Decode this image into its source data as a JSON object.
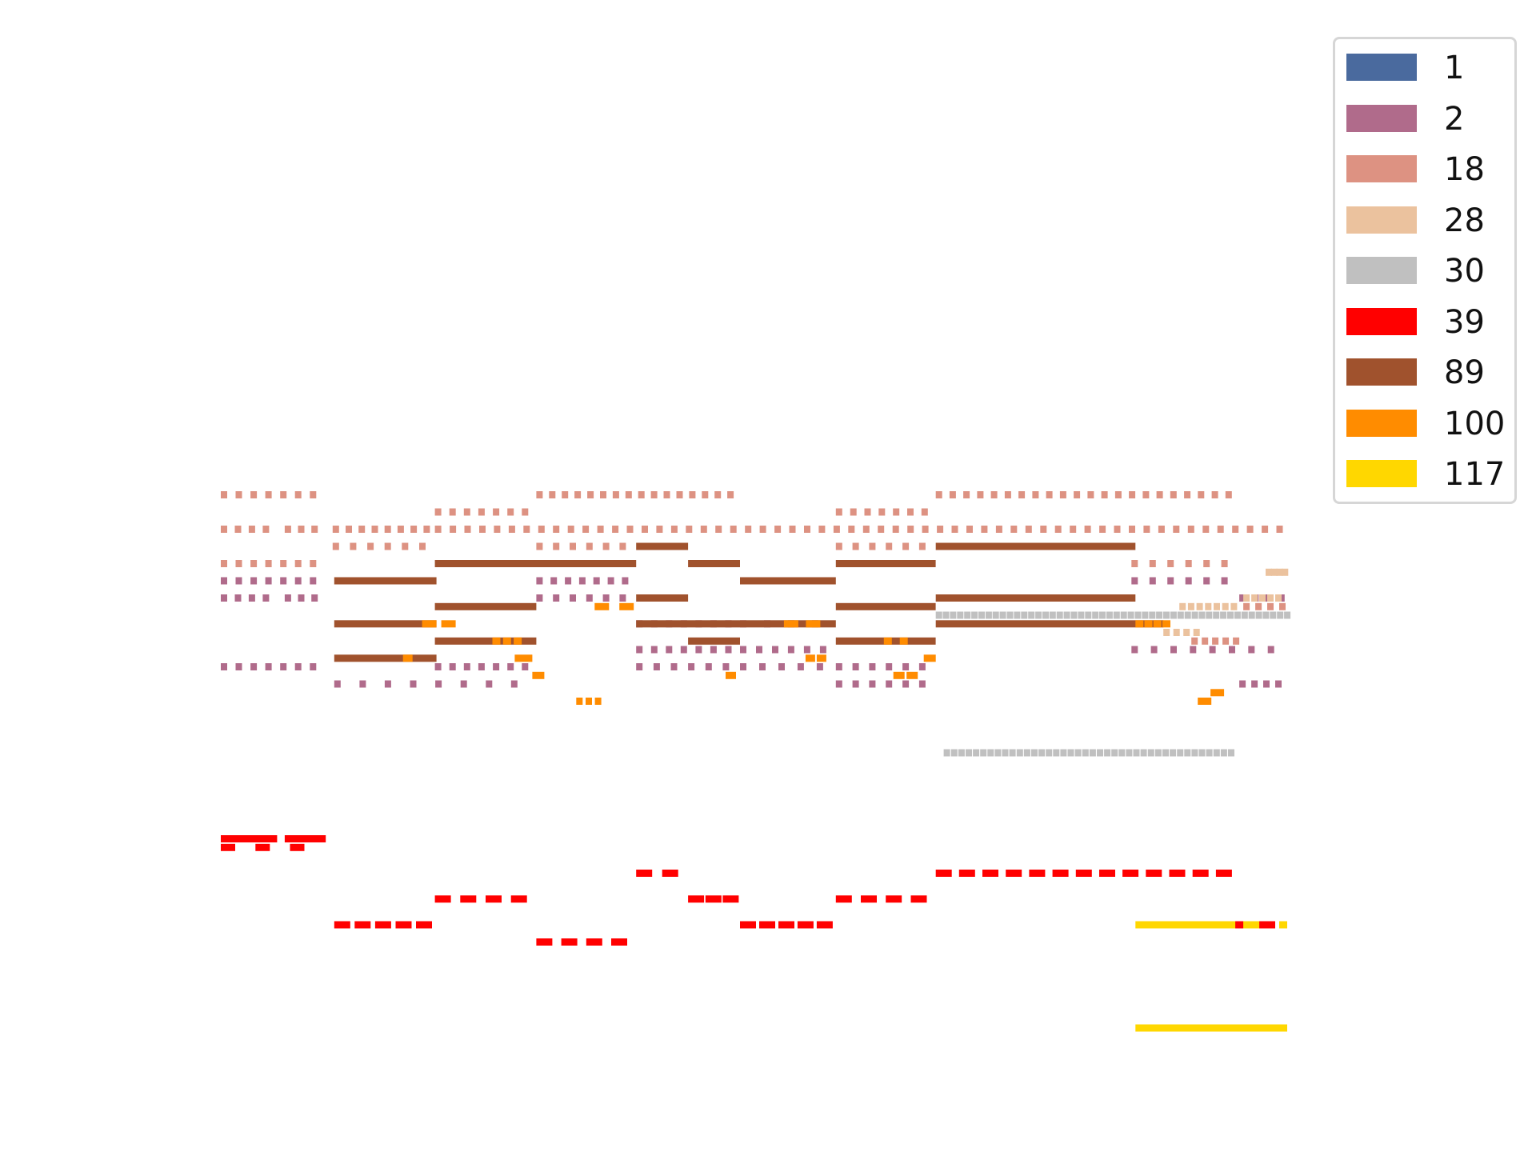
{
  "chart_data": {
    "type": "piano-roll",
    "title": "",
    "xlabel": "",
    "ylabel": "",
    "axes_visible": false,
    "grid": false,
    "legend_position": "top-right",
    "legend": [
      {
        "label": "1",
        "color": "#4a6a9e"
      },
      {
        "label": "2",
        "color": "#b06b8b"
      },
      {
        "label": "18",
        "color": "#dd9282"
      },
      {
        "label": "28",
        "color": "#ebc29e"
      },
      {
        "label": "30",
        "color": "#c0c0c0"
      },
      {
        "label": "39",
        "color": "#ff0000"
      },
      {
        "label": "89",
        "color": "#a0522d"
      },
      {
        "label": "100",
        "color": "#ff8c00"
      },
      {
        "label": "117",
        "color": "#ffd700"
      }
    ],
    "x_range": [
      0,
      1330
    ],
    "y_range": [
      0,
      100
    ],
    "series": [
      {
        "name": "18",
        "color": "#dd9282",
        "notes": [
          {
            "row": 2,
            "groups": [
              [
                0,
                130,
                7,
                8
              ],
              [
                395,
                650,
                16,
                8
              ],
              [
                895,
                1275,
                22,
                8
              ]
            ]
          },
          {
            "row": 4,
            "groups": [
              [
                268,
                395,
                7,
                8
              ],
              [
                770,
                895,
                7,
                8
              ]
            ]
          },
          {
            "row": 6,
            "groups": [
              [
                0,
                70,
                4,
                8
              ],
              [
                80,
                130,
                3,
                8
              ],
              [
                140,
                270,
                8,
                8
              ],
              [
                268,
                1340,
                58,
                8
              ]
            ]
          },
          {
            "row": 8,
            "groups": [
              [
                140,
                270,
                6,
                8
              ],
              [
                395,
                520,
                6,
                8
              ],
              [
                770,
                895,
                6,
                8
              ]
            ]
          },
          {
            "row": 10,
            "groups": [
              [
                0,
                130,
                7,
                8
              ],
              [
                1140,
                1275,
                6,
                8
              ]
            ]
          },
          {
            "row": 15,
            "groups": [
              [
                1280,
                1340,
                4,
                8
              ]
            ]
          },
          {
            "row": 19,
            "groups": [
              [
                1215,
                1280,
                5,
                8
              ]
            ]
          }
        ]
      },
      {
        "name": "2",
        "color": "#b06b8b",
        "notes": [
          {
            "row": 12,
            "groups": [
              [
                0,
                130,
                7,
                8
              ],
              [
                395,
                520,
                7,
                8
              ],
              [
                1140,
                1275,
                6,
                8
              ]
            ]
          },
          {
            "row": 14,
            "groups": [
              [
                0,
                70,
                4,
                8
              ],
              [
                80,
                130,
                3,
                8
              ],
              [
                395,
                520,
                6,
                8
              ],
              [
                1275,
                1340,
                4,
                8
              ]
            ]
          },
          {
            "row": 17,
            "groups": [
              [
                520,
                650,
                7,
                8
              ],
              [
                650,
                770,
                4,
                8
              ]
            ]
          },
          {
            "row": 20,
            "groups": [
              [
                520,
                650,
                7,
                8
              ],
              [
                650,
                770,
                6,
                8
              ],
              [
                1140,
                1335,
                8,
                8
              ]
            ]
          },
          {
            "row": 22,
            "groups": [
              [
                0,
                130,
                7,
                8
              ],
              [
                268,
                395,
                7,
                8
              ],
              [
                520,
                650,
                6,
                8
              ],
              [
                650,
                770,
                5,
                8
              ],
              [
                770,
                895,
                6,
                8
              ]
            ]
          },
          {
            "row": 24,
            "groups": [
              [
                142,
                395,
                8,
                8
              ],
              [
                770,
                895,
                6,
                8
              ],
              [
                1275,
                1335,
                4,
                8
              ]
            ]
          }
        ]
      },
      {
        "name": "28",
        "color": "#ebc29e",
        "notes": [
          {
            "row": 11,
            "groups": [
              [
                1308,
                1335,
                4,
                8
              ]
            ]
          },
          {
            "row": 14,
            "groups": [
              [
                1280,
                1330,
                5,
                8
              ]
            ]
          },
          {
            "row": 15,
            "groups": [
              [
                1200,
                1275,
                7,
                8
              ]
            ]
          },
          {
            "row": 18,
            "groups": [
              [
                1180,
                1230,
                4,
                8
              ]
            ]
          }
        ]
      },
      {
        "name": "30",
        "color": "#c0c0c0",
        "notes": [
          {
            "row": 16,
            "groups": [
              [
                895,
                1340,
                50,
                8
              ]
            ]
          },
          {
            "row": 32,
            "groups": [
              [
                905,
                1270,
                40,
                8
              ]
            ]
          }
        ]
      },
      {
        "name": "39",
        "color": "#ff0000",
        "notes": [
          {
            "row": 42,
            "groups": [
              [
                0,
                70,
                4,
                18
              ],
              [
                80,
                130,
                3,
                18
              ]
            ]
          },
          {
            "row": 43,
            "groups": [
              [
                0,
                130,
                3,
                18
              ]
            ]
          },
          {
            "row": 46,
            "groups": [
              [
                520,
                585,
                2,
                20
              ],
              [
                895,
                1275,
                13,
                20
              ]
            ]
          },
          {
            "row": 49,
            "groups": [
              [
                268,
                395,
                4,
                20
              ],
              [
                585,
                650,
                3,
                20
              ],
              [
                770,
                895,
                4,
                20
              ]
            ]
          },
          {
            "row": 52,
            "groups": [
              [
                142,
                270,
                5,
                20
              ],
              [
                650,
                770,
                5,
                20
              ],
              [
                1265,
                1335,
                2,
                20
              ]
            ]
          },
          {
            "row": 54,
            "groups": [
              [
                395,
                520,
                4,
                20
              ]
            ]
          }
        ]
      },
      {
        "name": "89",
        "color": "#a0522d",
        "notes": [
          {
            "row": 8,
            "groups": [
              [
                520,
                585,
                1,
                62
              ],
              [
                895,
                1145,
                1,
                249
              ]
            ]
          },
          {
            "row": 10,
            "groups": [
              [
                268,
                520,
                1,
                250
              ],
              [
                585,
                650,
                1,
                62
              ],
              [
                770,
                895,
                1,
                125
              ]
            ]
          },
          {
            "row": 12,
            "groups": [
              [
                142,
                270,
                1,
                125
              ],
              [
                650,
                770,
                1,
                125
              ]
            ]
          },
          {
            "row": 14,
            "groups": [
              [
                520,
                585,
                1,
                62
              ],
              [
                895,
                1145,
                1,
                249
              ]
            ]
          },
          {
            "row": 15,
            "groups": [
              [
                268,
                395,
                1,
                125
              ],
              [
                770,
                895,
                1,
                125
              ]
            ]
          },
          {
            "row": 17,
            "groups": [
              [
                142,
                270,
                1,
                125
              ],
              [
                520,
                650,
                1,
                125
              ],
              [
                650,
                770,
                1,
                125
              ],
              [
                895,
                1180,
                1,
                285
              ]
            ]
          },
          {
            "row": 19,
            "groups": [
              [
                268,
                395,
                1,
                125
              ],
              [
                585,
                650,
                1,
                62
              ],
              [
                770,
                895,
                1,
                125
              ]
            ]
          },
          {
            "row": 21,
            "groups": [
              [
                142,
                270,
                1,
                125
              ]
            ]
          }
        ]
      },
      {
        "name": "100",
        "color": "#ff8c00",
        "notes": [
          {
            "row": 15,
            "groups": [
              [
                468,
                530,
                2,
                18
              ]
            ]
          },
          {
            "row": 17,
            "groups": [
              [
                252,
                300,
                2,
                18
              ],
              [
                705,
                760,
                2,
                18
              ],
              [
                1145,
                1190,
                4,
                10
              ]
            ]
          },
          {
            "row": 19,
            "groups": [
              [
                340,
                380,
                3,
                10
              ],
              [
                830,
                870,
                2,
                10
              ]
            ]
          },
          {
            "row": 21,
            "groups": [
              [
                228,
                240,
                1,
                10
              ],
              [
                368,
                390,
                1,
                14
              ],
              [
                732,
                760,
                2,
                12
              ],
              [
                880,
                895,
                1,
                14
              ]
            ]
          },
          {
            "row": 23,
            "groups": [
              [
                390,
                405,
                1,
                12
              ],
              [
                632,
                645,
                1,
                12
              ],
              [
                842,
                875,
                2,
                14
              ]
            ]
          },
          {
            "row": 25,
            "groups": [
              [
                1239,
                1256,
                1,
                16
              ]
            ]
          },
          {
            "row": 26,
            "groups": [
              [
                445,
                480,
                3,
                8
              ],
              [
                1223,
                1240,
                1,
                16
              ]
            ]
          }
        ]
      },
      {
        "name": "117",
        "color": "#ffd700",
        "notes": [
          {
            "row": 52,
            "groups": [
              [
                1145,
                1270,
                1,
                125
              ],
              [
                1280,
                1300,
                1,
                10
              ],
              [
                1325,
                1335,
                1,
                10
              ]
            ]
          },
          {
            "row": 64,
            "groups": [
              [
                1145,
                1335,
                1,
                190
              ]
            ]
          }
        ]
      }
    ]
  }
}
